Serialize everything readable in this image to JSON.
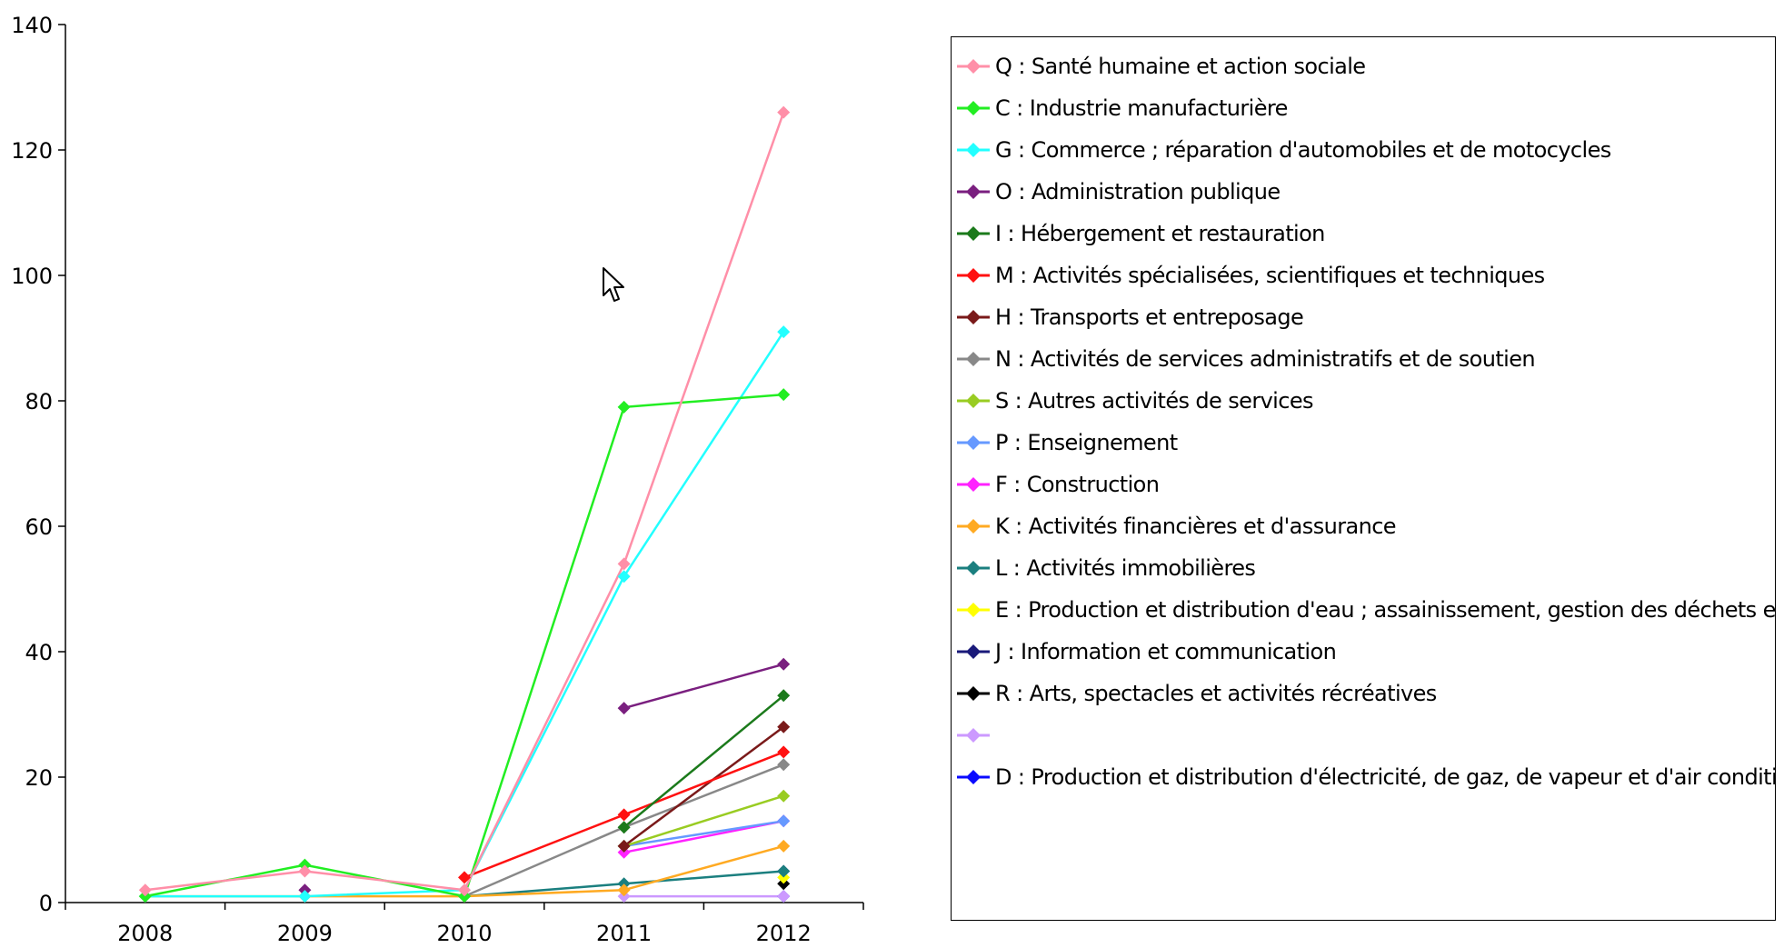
{
  "chart_data": {
    "type": "line",
    "title": "",
    "xlabel": "",
    "ylabel": "",
    "ylim": [
      0,
      140
    ],
    "yticks": [
      "0",
      "20",
      "40",
      "60",
      "80",
      "100",
      "120",
      "140"
    ],
    "categories": [
      "2008",
      "2009",
      "2010",
      "2011",
      "2012"
    ],
    "grid": false,
    "legend_position": "right",
    "series": [
      {
        "name": "Q : Santé humaine et action sociale",
        "color": "#ff8fa8",
        "values": [
          2,
          5,
          2,
          54,
          126
        ]
      },
      {
        "name": "C : Industrie manufacturière",
        "color": "#22ee22",
        "values": [
          1,
          6,
          1,
          79,
          81
        ]
      },
      {
        "name": "G : Commerce ; réparation d'automobiles et de motocycles",
        "color": "#22ffff",
        "values": [
          1,
          1,
          2,
          52,
          91
        ]
      },
      {
        "name": "O : Administration publique",
        "color": "#7a1f7f",
        "values": [
          null,
          2,
          null,
          31,
          38
        ]
      },
      {
        "name": "I : Hébergement et restauration",
        "color": "#1b7a1b",
        "values": [
          null,
          null,
          null,
          12,
          33
        ]
      },
      {
        "name": "M : Activités spécialisées, scientifiques et techniques",
        "color": "#ff1111",
        "values": [
          null,
          null,
          4,
          14,
          24
        ]
      },
      {
        "name": "H : Transports et entreposage",
        "color": "#7a1a1a",
        "values": [
          null,
          null,
          null,
          9,
          28
        ]
      },
      {
        "name": "N : Activités de services administratifs et de soutien",
        "color": "#888888",
        "values": [
          null,
          null,
          1,
          12,
          22
        ]
      },
      {
        "name": "S : Autres activités de services",
        "color": "#99cc22",
        "values": [
          null,
          null,
          null,
          9,
          17
        ]
      },
      {
        "name": "P : Enseignement",
        "color": "#6699ff",
        "values": [
          null,
          null,
          null,
          9,
          13
        ]
      },
      {
        "name": "F : Construction",
        "color": "#ff22ff",
        "values": [
          null,
          null,
          null,
          8,
          13
        ]
      },
      {
        "name": "K : Activités financières et d'assurance",
        "color": "#ffaa22",
        "values": [
          1,
          1,
          1,
          2,
          9
        ]
      },
      {
        "name": "L : Activités immobilières",
        "color": "#1b7f7f",
        "values": [
          null,
          null,
          1,
          3,
          5
        ]
      },
      {
        "name": "E : Production et distribution d'eau ; assainissement, gestion des déchets et",
        "color": "#ffff00",
        "values": [
          null,
          null,
          null,
          null,
          4
        ]
      },
      {
        "name": "J : Information et communication",
        "color": "#1a1a7a",
        "values": [
          null,
          null,
          null,
          null,
          5
        ]
      },
      {
        "name": "R : Arts, spectacles et activités récréatives",
        "color": "#000000",
        "values": [
          null,
          null,
          null,
          null,
          3
        ]
      },
      {
        "name": "",
        "color": "#cc99ff",
        "values": [
          null,
          null,
          null,
          1,
          1
        ]
      },
      {
        "name": "D : Production et distribution d'électricité, de gaz, de vapeur et d'air conditio",
        "color": "#0a0aff",
        "values": [
          null,
          null,
          null,
          null,
          1
        ]
      }
    ]
  }
}
